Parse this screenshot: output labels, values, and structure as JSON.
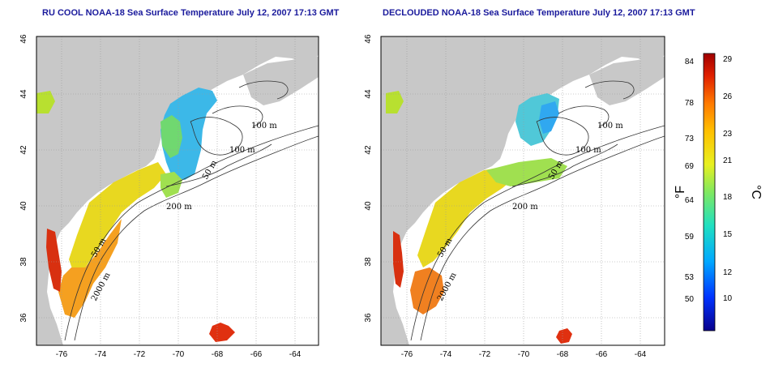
{
  "panels": [
    {
      "title": "RU COOL NOAA-18 Sea Surface Temperature July 12, 2007 17:13 GMT",
      "xticks": [
        "-76",
        "-74",
        "-72",
        "-70",
        "-68",
        "-66",
        "-64"
      ],
      "yticks": [
        "46",
        "44",
        "42",
        "40",
        "38",
        "36"
      ],
      "contour_labels": [
        "100 m",
        "100 m",
        "50 m",
        "200 m",
        "50 m",
        "2000 m"
      ]
    },
    {
      "title": "DECLOUDED NOAA-18 Sea Surface Temperature July 12, 2007 17:13 GMT",
      "xticks": [
        "-76",
        "-74",
        "-72",
        "-70",
        "-68",
        "-66",
        "-64"
      ],
      "yticks": [
        "46",
        "44",
        "42",
        "40",
        "38",
        "36"
      ],
      "contour_labels": [
        "100 m",
        "100 m",
        "50 m",
        "200 m",
        "50 m",
        "2000 m"
      ]
    }
  ],
  "colorbar": {
    "fahrenheit_ticks": [
      "84",
      "78",
      "73",
      "69",
      "64",
      "59",
      "53",
      "50"
    ],
    "celsius_ticks": [
      "29",
      "26",
      "23",
      "21",
      "18",
      "15",
      "12",
      "10"
    ],
    "fahrenheit_label": "°F",
    "celsius_label": "°C",
    "colors": [
      "#08008c",
      "#0033ff",
      "#00a8ff",
      "#20e0c0",
      "#80e860",
      "#e8f020",
      "#ffc000",
      "#ff7a00",
      "#e02000",
      "#a00000"
    ]
  },
  "map": {
    "land_color": "#c8c8c8",
    "grid_style": "dotted"
  }
}
